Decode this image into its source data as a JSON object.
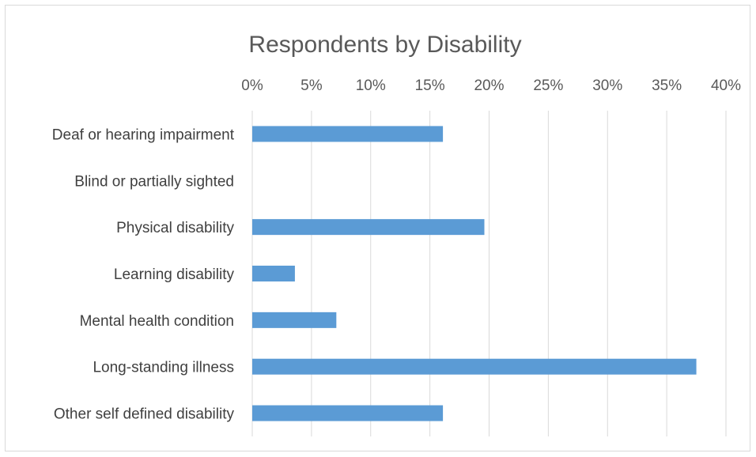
{
  "chart_data": {
    "type": "bar",
    "orientation": "horizontal",
    "title": "Respondents by Disability",
    "xlabel": "",
    "ylabel": "",
    "categories": [
      "Deaf or hearing impairment",
      "Blind or partially sighted",
      "Physical disability",
      "Learning disability",
      "Mental health condition",
      "Long-standing illness",
      "Other self defined disability"
    ],
    "values": [
      16.1,
      0,
      19.6,
      3.6,
      7.1,
      37.5,
      16.1
    ],
    "value_unit": "%",
    "xlim": [
      0,
      40
    ],
    "x_ticks": [
      0,
      5,
      10,
      15,
      20,
      25,
      30,
      35,
      40
    ],
    "x_tick_labels": [
      "0%",
      "5%",
      "10%",
      "15%",
      "20%",
      "25%",
      "30%",
      "35%",
      "40%"
    ],
    "x_axis_position": "top",
    "grid": true,
    "legend": "none",
    "bar_color": "#5b9bd5"
  }
}
